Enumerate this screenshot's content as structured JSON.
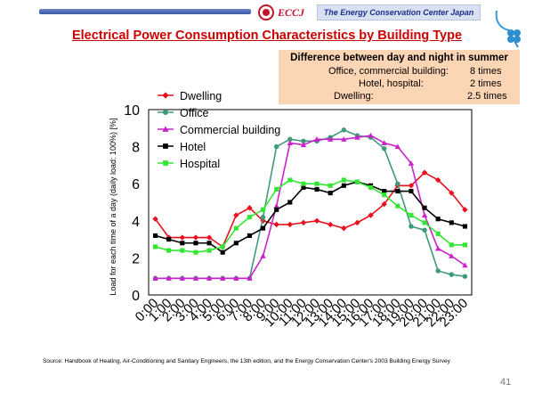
{
  "header": {
    "org_short": "ECCJ",
    "org_full": "The Energy Conservation Center Japan",
    "brand_color": "#c4122a"
  },
  "slide": {
    "title": "Electrical Power Consumption Characteristics by Building Type",
    "page_number": "41",
    "source": "Source:  Handbook of Heating, Air-Conditioning and Sanitary Engineers, the 13th edition, and the Energy Conservation Center's 2003 Building Energy Survey"
  },
  "info_box": {
    "title": "Difference between day and night  in summer",
    "rows": [
      {
        "label": "Office, commercial building:",
        "value": "8 times"
      },
      {
        "label": "Hotel, hospital:",
        "value": "2 times"
      },
      {
        "label": "Dwelling:",
        "value": "2.5 times"
      }
    ]
  },
  "chart_data": {
    "type": "line",
    "title": "",
    "xlabel": "",
    "ylabel": "Load for each time of a day (daily load: 100%) [%]",
    "ylim": [
      0,
      10
    ],
    "yticks": [
      "0",
      "2",
      "4",
      "6",
      "8",
      "10"
    ],
    "grid": true,
    "legend": "top-left",
    "categories": [
      "0:00",
      "1:00",
      "2:00",
      "3:00",
      "4:00",
      "5:00",
      "6:00",
      "7:00",
      "8:00",
      "9:00",
      "10:00",
      "11:00",
      "12:00",
      "13:00",
      "14:00",
      "15:00",
      "16:00",
      "17:00",
      "18:00",
      "19:00",
      "20:00",
      "21:00",
      "22:00",
      "23:00"
    ],
    "series": [
      {
        "name": "Dwelling",
        "color": "#e8101c",
        "marker": "diamond",
        "values": [
          4.1,
          3.1,
          3.1,
          3.1,
          3.1,
          2.6,
          4.3,
          4.7,
          4.0,
          3.8,
          3.8,
          3.9,
          4.0,
          3.8,
          3.6,
          3.9,
          4.3,
          4.9,
          5.9,
          5.9,
          6.6,
          6.2,
          5.5,
          4.6
        ]
      },
      {
        "name": "Office",
        "color": "#3e9a78",
        "marker": "circle",
        "values": [
          0.9,
          0.9,
          0.9,
          0.9,
          0.9,
          0.9,
          0.9,
          0.9,
          4.2,
          8.0,
          8.4,
          8.3,
          8.3,
          8.5,
          8.9,
          8.6,
          8.5,
          7.9,
          6.0,
          3.7,
          3.5,
          1.3,
          1.1,
          1.0
        ]
      },
      {
        "name": "Commercial building",
        "color": "#cc22cc",
        "marker": "triangle",
        "values": [
          0.9,
          0.9,
          0.9,
          0.9,
          0.9,
          0.9,
          0.9,
          0.9,
          2.1,
          4.8,
          8.2,
          8.1,
          8.4,
          8.4,
          8.4,
          8.5,
          8.6,
          8.2,
          8.0,
          7.1,
          4.3,
          2.5,
          2.1,
          1.6
        ]
      },
      {
        "name": "Hotel",
        "color": "#000000",
        "marker": "square",
        "values": [
          3.2,
          3.0,
          2.8,
          2.8,
          2.8,
          2.3,
          2.8,
          3.2,
          3.6,
          4.6,
          5.0,
          5.8,
          5.7,
          5.5,
          5.9,
          6.1,
          5.9,
          5.6,
          5.6,
          5.6,
          4.7,
          4.1,
          3.9,
          3.7
        ]
      },
      {
        "name": "Hospital",
        "color": "#33e633",
        "marker": "square",
        "values": [
          2.6,
          2.4,
          2.4,
          2.3,
          2.4,
          2.6,
          3.6,
          4.2,
          4.6,
          5.7,
          6.2,
          6.0,
          6.0,
          5.9,
          6.2,
          6.1,
          5.8,
          5.4,
          4.8,
          4.3,
          3.9,
          3.3,
          2.7,
          2.7
        ]
      }
    ]
  }
}
